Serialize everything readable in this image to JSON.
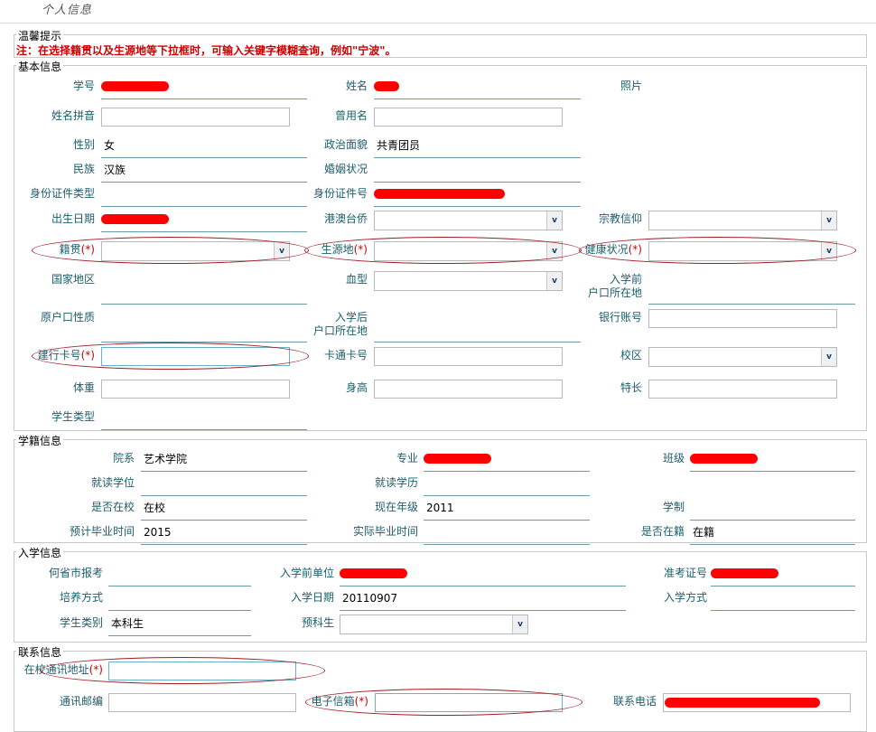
{
  "page_title": "个人信息",
  "tip": {
    "legend": "温馨提示",
    "text": "注：在选择籍贯以及生源地等下拉框时，可输入关键字模糊查询，例如\"宁波\"。"
  },
  "sections": [
    {
      "key": "basic",
      "legend": "基本信息",
      "rows": [
        [
          {
            "label": "学号",
            "type": "redacted"
          },
          {
            "label": "姓名",
            "type": "redacted"
          },
          {
            "label": "照片",
            "type": "label"
          }
        ],
        [
          {
            "label": "姓名拼音",
            "type": "input"
          },
          {
            "label": "曾用名",
            "type": "input"
          }
        ],
        [
          {
            "label": "性别",
            "type": "text",
            "value": "女"
          },
          {
            "label": "政治面貌",
            "type": "text",
            "value": "共青团员"
          }
        ],
        [
          {
            "label": "民族",
            "type": "text",
            "value": "汉族"
          },
          {
            "label": "婚姻状况",
            "type": "text",
            "value": ""
          }
        ],
        [
          {
            "label": "身份证件类型",
            "type": "text",
            "value": ""
          },
          {
            "label": "身份证件号",
            "type": "redacted"
          }
        ],
        [
          {
            "label": "出生日期",
            "type": "redacted"
          },
          {
            "label": "港澳台侨",
            "type": "select"
          },
          {
            "label": "宗教信仰",
            "type": "select"
          }
        ],
        [
          {
            "label": "籍贯",
            "required": true,
            "type": "select",
            "circled": true
          },
          {
            "label": "生源地",
            "required": true,
            "type": "select",
            "circled": true
          },
          {
            "label": "健康状况",
            "required": true,
            "type": "select",
            "circled": true
          }
        ],
        [
          {
            "label": "国家地区",
            "type": "text",
            "value": ""
          },
          {
            "label": "血型",
            "type": "select"
          },
          {
            "label": "入学前\n户口所在地",
            "type": "text",
            "value": ""
          }
        ],
        [
          {
            "label": "原户口性质",
            "type": "text",
            "value": ""
          },
          {
            "label": "入学后\n户口所在地",
            "type": "text",
            "value": ""
          },
          {
            "label": "银行账号",
            "type": "input"
          }
        ],
        [
          {
            "label": "建行卡号",
            "required": true,
            "type": "input",
            "circled": true
          },
          {
            "label": "卡通卡号",
            "type": "input"
          },
          {
            "label": "校区",
            "type": "select"
          }
        ],
        [
          {
            "label": "体重",
            "type": "input"
          },
          {
            "label": "身高",
            "type": "input"
          },
          {
            "label": "特长",
            "type": "input"
          }
        ],
        [
          {
            "label": "学生类型",
            "type": "text",
            "value": ""
          }
        ]
      ]
    },
    {
      "key": "status",
      "legend": "学籍信息",
      "rows": [
        [
          {
            "label": "院系",
            "type": "text",
            "value": "艺术学院"
          },
          {
            "label": "专业",
            "type": "redacted"
          },
          {
            "label": "班级",
            "type": "redacted"
          }
        ],
        [
          {
            "label": "就读学位",
            "type": "text",
            "value": ""
          },
          {
            "label": "就读学历",
            "type": "text",
            "value": ""
          }
        ],
        [
          {
            "label": "是否在校",
            "type": "text",
            "value": "在校"
          },
          {
            "label": "现在年级",
            "type": "text",
            "value": "2011"
          },
          {
            "label": "学制",
            "type": "text",
            "value": ""
          }
        ],
        [
          {
            "label": "预计毕业时间",
            "type": "text",
            "value": "2015"
          },
          {
            "label": "实际毕业时间",
            "type": "text",
            "value": ""
          },
          {
            "label": "是否在籍",
            "type": "text",
            "value": "在籍"
          }
        ]
      ]
    },
    {
      "key": "enroll",
      "legend": "入学信息",
      "rows": [
        [
          {
            "label": "何省市报考",
            "type": "text",
            "value": ""
          },
          {
            "label": "入学前单位",
            "type": "redacted"
          },
          {
            "label": "准考证号",
            "type": "redacted"
          }
        ],
        [
          {
            "label": "培养方式",
            "type": "text",
            "value": ""
          },
          {
            "label": "入学日期",
            "type": "text",
            "value": "20110907"
          },
          {
            "label": "入学方式",
            "type": "text",
            "value": ""
          }
        ],
        [
          {
            "label": "学生类别",
            "type": "text",
            "value": "本科生"
          },
          {
            "label": "预科生",
            "type": "select"
          }
        ]
      ]
    },
    {
      "key": "contact",
      "legend": "联系信息",
      "rows": [
        [
          {
            "label": "在校通讯地址",
            "required": true,
            "type": "input",
            "circled": true
          }
        ],
        [
          {
            "label": "通讯邮编",
            "type": "input"
          },
          {
            "label": "电子信箱",
            "required": true,
            "type": "input",
            "circled": true
          },
          {
            "label": "联系电话",
            "type": "redacted-input"
          }
        ]
      ]
    }
  ],
  "required_mark": "(*)",
  "select_arrow": "v",
  "colors": {
    "label": "#1c5d6b",
    "notice": "#cc0000",
    "redaction": "#ff0000",
    "annotation": "#a01c24"
  }
}
